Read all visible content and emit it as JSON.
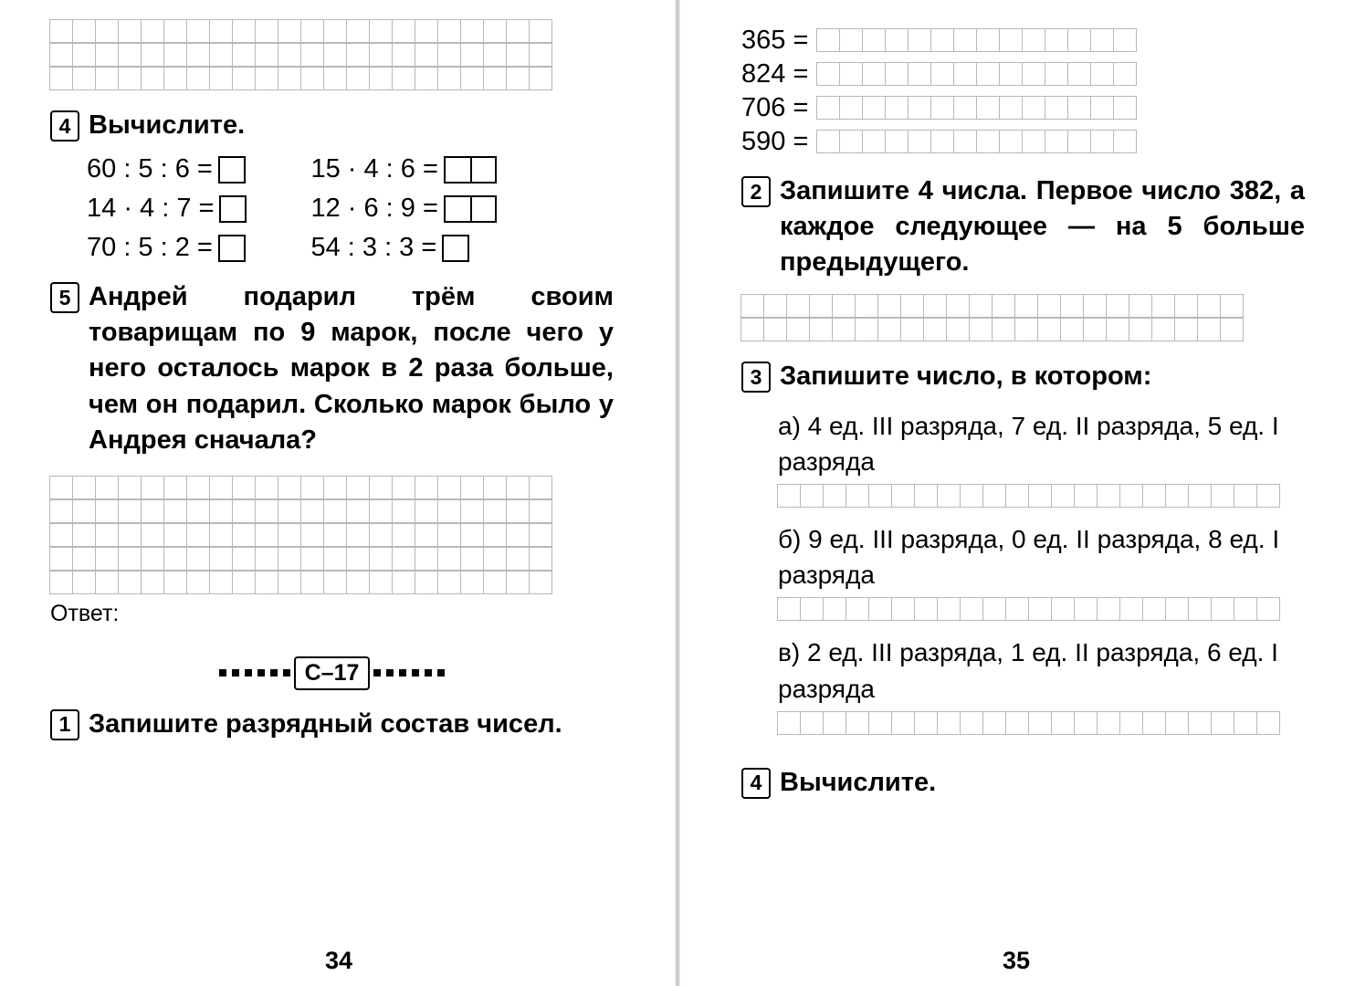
{
  "left": {
    "topGrid": {
      "rows": 3,
      "cols": 22
    },
    "p4": {
      "num": "4",
      "title": "Вычислите.",
      "col1": [
        "60 : 5 : 6 =",
        "14 · 4 : 7 =",
        "70 : 5 : 2 ="
      ],
      "col2": [
        "15 · 4 : 6 =",
        "12 · 6 : 9 =",
        "54 : 3 : 3 ="
      ]
    },
    "p5": {
      "num": "5",
      "text": "Андрей подарил трём своим товарищам по 9 марок, после чего у него осталось марок в 2 раза больше, чем он подарил. Сколько марок было у Андрея сначала?"
    },
    "workGrid": {
      "rows": 5,
      "cols": 22
    },
    "answerLabel": "Ответ:",
    "section": "С–17",
    "p1": {
      "num": "1",
      "text": "Запишите разрядный состав чисел."
    },
    "pageNum": "34"
  },
  "right": {
    "decompose": {
      "cols": 14,
      "rows": [
        {
          "n": "365 ="
        },
        {
          "n": "824 ="
        },
        {
          "n": "706 ="
        },
        {
          "n": "590 ="
        }
      ]
    },
    "p2": {
      "num": "2",
      "text": "Запишите 4 числа. Первое число 382, а каждое следующее — на 5 больше предыдущего."
    },
    "workGrid2": {
      "rows": 2,
      "cols": 22
    },
    "p3": {
      "num": "3",
      "title": "Запишите число, в котором:",
      "items": [
        {
          "label": "а) 4 ед. III разряда, 7 ед. II разряда, 5 ед. I разряда"
        },
        {
          "label": "б) 9 ед. III разряда, 0 ед. II разряда, 8 ед. I разряда"
        },
        {
          "label": "в) 2 ед. III разряда, 1 ед. II разряда, 6 ед. I разряда"
        }
      ],
      "shortGridCols": 22
    },
    "p4r": {
      "num": "4",
      "title": "Вычислите."
    },
    "pageNum": "35"
  }
}
